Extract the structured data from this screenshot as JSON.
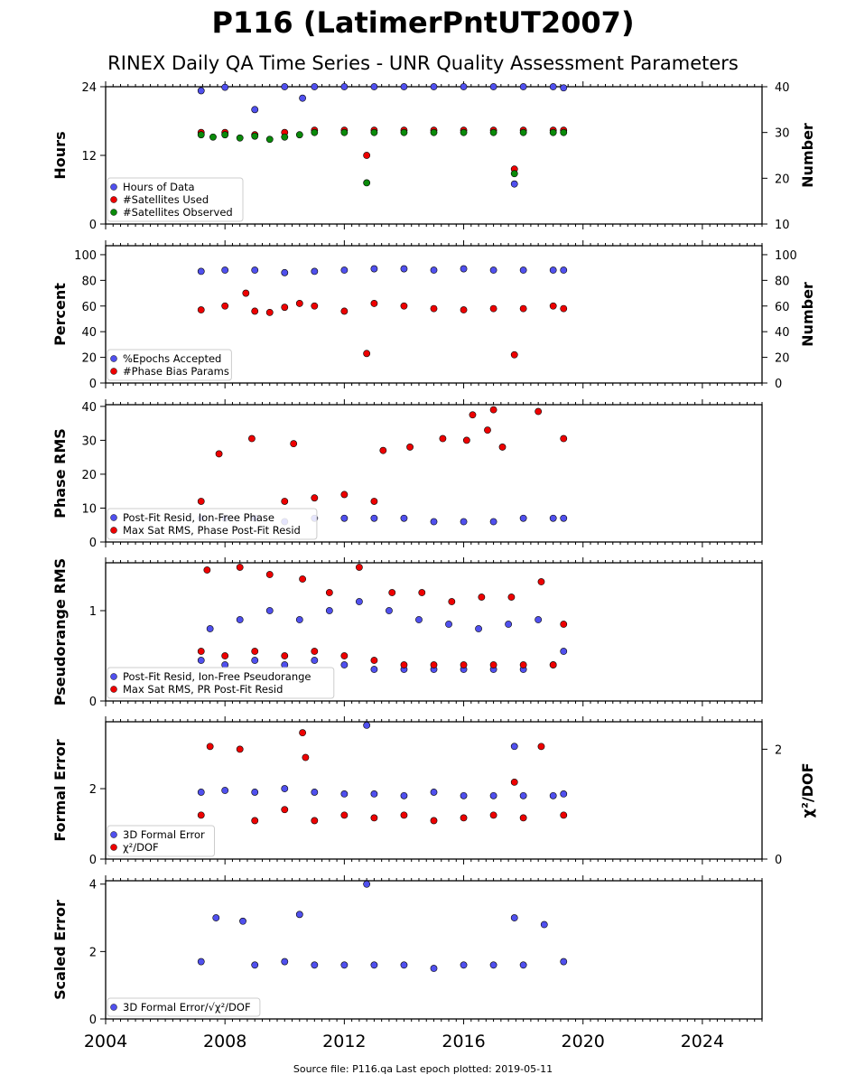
{
  "title": "P116 (LatimerPntUT2007)",
  "subtitle": "RINEX Daily QA Time Series - UNR Quality Assessment Parameters",
  "footer": "Source file: P116.qa Last epoch plotted: 2019-05-11",
  "colors": {
    "blue": "#5050ee",
    "red": "#ee0000",
    "green": "#0a8a0a",
    "edge": "#000000"
  },
  "chart_data": [
    {
      "type": "scatter",
      "ylabel": "Hours",
      "y2label": "Number",
      "xlim": [
        2004,
        2026
      ],
      "ylim": [
        0,
        24
      ],
      "yticks": [
        0,
        12,
        24
      ],
      "y2lim": [
        10,
        40
      ],
      "y2ticks": [
        10,
        20,
        30,
        40
      ],
      "legend_position": "lower-left",
      "series": [
        {
          "name": "Hours of Data",
          "color": "blue",
          "axis": "left",
          "x": [
            2007.2,
            2008.0,
            2009.0,
            2010.0,
            2010.6,
            2011.0,
            2012.0,
            2013.0,
            2014.0,
            2015.0,
            2016.0,
            2017.0,
            2017.7,
            2018.0,
            2019.0,
            2019.35
          ],
          "y": [
            23.3,
            23.9,
            20.0,
            24.0,
            22.0,
            24.0,
            24.0,
            24.0,
            24.0,
            24.0,
            24.0,
            24.0,
            7.0,
            24.0,
            24.0,
            23.8
          ]
        },
        {
          "name": "#Satellites Used",
          "color": "red",
          "axis": "right",
          "x": [
            2007.2,
            2008.0,
            2009.0,
            2010.0,
            2011.0,
            2012.0,
            2012.75,
            2013.0,
            2014.0,
            2015.0,
            2016.0,
            2017.0,
            2017.7,
            2018.0,
            2019.0,
            2019.35
          ],
          "y": [
            30.0,
            30.0,
            29.5,
            30.0,
            30.5,
            30.5,
            25.0,
            30.5,
            30.5,
            30.5,
            30.5,
            30.5,
            22.0,
            30.5,
            30.5,
            30.5
          ]
        },
        {
          "name": "#Satellites Observed",
          "color": "green",
          "axis": "right",
          "x": [
            2007.2,
            2007.6,
            2008.0,
            2008.5,
            2009.0,
            2009.5,
            2010.0,
            2010.5,
            2011.0,
            2012.0,
            2012.75,
            2013.0,
            2014.0,
            2015.0,
            2016.0,
            2017.0,
            2017.7,
            2018.0,
            2019.0,
            2019.35
          ],
          "y": [
            29.5,
            29.0,
            29.5,
            28.8,
            29.2,
            28.5,
            29.0,
            29.5,
            30.0,
            30.0,
            19.0,
            30.0,
            30.0,
            30.0,
            30.0,
            30.0,
            21.0,
            30.0,
            30.0,
            30.0
          ]
        }
      ]
    },
    {
      "type": "scatter",
      "ylabel": "Percent",
      "y2label": "Number",
      "xlim": [
        2004,
        2026
      ],
      "ylim": [
        0,
        107
      ],
      "yticks": [
        0,
        20,
        40,
        60,
        80,
        100
      ],
      "y2lim": [
        0,
        107
      ],
      "y2ticks": [
        0,
        20,
        40,
        60,
        80,
        100
      ],
      "legend_position": "lower-left",
      "series": [
        {
          "name": "%Epochs Accepted",
          "color": "blue",
          "axis": "left",
          "x": [
            2007.2,
            2008.0,
            2009.0,
            2010.0,
            2011.0,
            2012.0,
            2013.0,
            2014.0,
            2015.0,
            2016.0,
            2017.0,
            2018.0,
            2019.0,
            2019.35
          ],
          "y": [
            87,
            88,
            88,
            86,
            87,
            88,
            89,
            89,
            88,
            89,
            88,
            88,
            88,
            88
          ]
        },
        {
          "name": "#Phase Bias Params",
          "color": "red",
          "axis": "left",
          "x": [
            2007.2,
            2008.0,
            2008.7,
            2009.0,
            2009.5,
            2010.0,
            2010.5,
            2011.0,
            2012.0,
            2012.75,
            2013.0,
            2014.0,
            2015.0,
            2016.0,
            2017.0,
            2017.7,
            2018.0,
            2019.0,
            2019.35
          ],
          "y": [
            57,
            60,
            70,
            56,
            55,
            59,
            62,
            60,
            56,
            23,
            62,
            60,
            58,
            57,
            58,
            22,
            58,
            60,
            58
          ]
        }
      ]
    },
    {
      "type": "scatter",
      "ylabel": "Phase RMS",
      "xlim": [
        2004,
        2026
      ],
      "ylim": [
        0,
        40.5
      ],
      "yticks": [
        0,
        10,
        20,
        30,
        40
      ],
      "legend_position": "lower-left",
      "series": [
        {
          "name": "Post-Fit Resid, Ion-Free Phase",
          "color": "blue",
          "x": [
            2007.2,
            2008.0,
            2009.0,
            2010.0,
            2011.0,
            2012.0,
            2013.0,
            2014.0,
            2015.0,
            2016.0,
            2017.0,
            2018.0,
            2019.0,
            2019.35
          ],
          "y": [
            7,
            7,
            7,
            6,
            7,
            7,
            7,
            7,
            6,
            6,
            6,
            7,
            7,
            7
          ]
        },
        {
          "name": "Max Sat RMS, Phase Post-Fit Resid",
          "color": "red",
          "x": [
            2007.2,
            2007.8,
            2008.9,
            2010.0,
            2010.3,
            2011.0,
            2012.0,
            2013.0,
            2013.3,
            2014.2,
            2015.3,
            2016.1,
            2016.3,
            2016.8,
            2017.0,
            2017.3,
            2018.5,
            2019.35
          ],
          "y": [
            12,
            26,
            30.5,
            12,
            29,
            13,
            14,
            12,
            27,
            28,
            30.5,
            30,
            37.5,
            33,
            39,
            28,
            38.5,
            30.5
          ]
        }
      ]
    },
    {
      "type": "scatter",
      "ylabel": "Pseudorange RMS",
      "xlim": [
        2004,
        2026
      ],
      "ylim": [
        0,
        1.53
      ],
      "yticks": [
        0,
        1
      ],
      "legend_position": "lower-left",
      "series": [
        {
          "name": "Post-Fit Resid, Ion-Free Pseudorange",
          "color": "blue",
          "x": [
            2007.2,
            2007.5,
            2008.0,
            2008.5,
            2009.0,
            2009.5,
            2010.0,
            2010.5,
            2011.0,
            2011.5,
            2012.0,
            2012.5,
            2013.0,
            2013.5,
            2014.0,
            2014.5,
            2015.0,
            2015.5,
            2016.0,
            2016.5,
            2017.0,
            2017.5,
            2018.0,
            2018.5,
            2019.0,
            2019.35
          ],
          "y": [
            0.45,
            0.8,
            0.4,
            0.9,
            0.45,
            1.0,
            0.4,
            0.9,
            0.45,
            1.0,
            0.4,
            1.1,
            0.35,
            1.0,
            0.35,
            0.9,
            0.35,
            0.85,
            0.35,
            0.8,
            0.35,
            0.85,
            0.35,
            0.9,
            0.4,
            0.55
          ]
        },
        {
          "name": "Max Sat RMS, PR Post-Fit Resid",
          "color": "red",
          "x": [
            2007.2,
            2007.4,
            2008.0,
            2008.5,
            2009.0,
            2009.5,
            2010.0,
            2010.6,
            2011.0,
            2011.5,
            2012.0,
            2012.5,
            2013.0,
            2013.6,
            2014.0,
            2014.6,
            2015.0,
            2015.6,
            2016.0,
            2016.6,
            2017.0,
            2017.6,
            2018.0,
            2018.6,
            2019.0,
            2019.35
          ],
          "y": [
            0.55,
            1.45,
            0.5,
            1.48,
            0.55,
            1.4,
            0.5,
            1.35,
            0.55,
            1.2,
            0.5,
            1.48,
            0.45,
            1.2,
            0.4,
            1.2,
            0.4,
            1.1,
            0.4,
            1.15,
            0.4,
            1.15,
            0.4,
            1.32,
            0.4,
            0.85
          ]
        }
      ]
    },
    {
      "type": "scatter",
      "ylabel": "Formal Error",
      "y2label": "χ²/DOF",
      "xlim": [
        2004,
        2026
      ],
      "ylim": [
        0,
        3.9
      ],
      "yticks": [
        0,
        2
      ],
      "y2lim": [
        0,
        2.5
      ],
      "y2ticks": [
        0,
        2
      ],
      "legend_position": "lower-left",
      "series": [
        {
          "name": "3D Formal Error",
          "color": "blue",
          "axis": "left",
          "x": [
            2007.2,
            2008.0,
            2009.0,
            2010.0,
            2011.0,
            2012.0,
            2012.75,
            2013.0,
            2014.0,
            2015.0,
            2016.0,
            2017.0,
            2017.7,
            2018.0,
            2019.0,
            2019.35
          ],
          "y": [
            1.9,
            1.95,
            1.9,
            2.0,
            1.9,
            1.85,
            3.8,
            1.85,
            1.8,
            1.9,
            1.8,
            1.8,
            3.2,
            1.8,
            1.8,
            1.85
          ]
        },
        {
          "name": "χ²/DOF",
          "color": "red",
          "axis": "right",
          "x": [
            2007.2,
            2007.5,
            2008.5,
            2009.0,
            2010.0,
            2010.6,
            2010.7,
            2011.0,
            2012.0,
            2013.0,
            2014.0,
            2015.0,
            2016.0,
            2017.0,
            2017.7,
            2018.0,
            2018.6,
            2019.35
          ],
          "y": [
            0.8,
            2.05,
            2.0,
            0.7,
            0.9,
            2.3,
            1.85,
            0.7,
            0.8,
            0.75,
            0.8,
            0.7,
            0.75,
            0.8,
            1.4,
            0.75,
            2.05,
            0.8
          ]
        }
      ]
    },
    {
      "type": "scatter",
      "ylabel": "Scaled Error",
      "xlim": [
        2004,
        2026
      ],
      "xticks": [
        2004,
        2008,
        2012,
        2016,
        2020,
        2024
      ],
      "ylim": [
        0,
        4.1
      ],
      "yticks": [
        0,
        2,
        4
      ],
      "legend_position": "lower-left",
      "series": [
        {
          "name": "3D Formal Error/√χ²/DOF",
          "color": "blue",
          "x": [
            2007.2,
            2007.7,
            2008.6,
            2009.0,
            2010.0,
            2010.5,
            2011.0,
            2012.0,
            2012.75,
            2013.0,
            2014.0,
            2015.0,
            2016.0,
            2017.0,
            2017.7,
            2018.0,
            2018.7,
            2019.35
          ],
          "y": [
            1.7,
            3.0,
            2.9,
            1.6,
            1.7,
            3.1,
            1.6,
            1.6,
            4.0,
            1.6,
            1.6,
            1.5,
            1.6,
            1.6,
            3.0,
            1.6,
            2.8,
            1.7
          ]
        }
      ]
    }
  ]
}
